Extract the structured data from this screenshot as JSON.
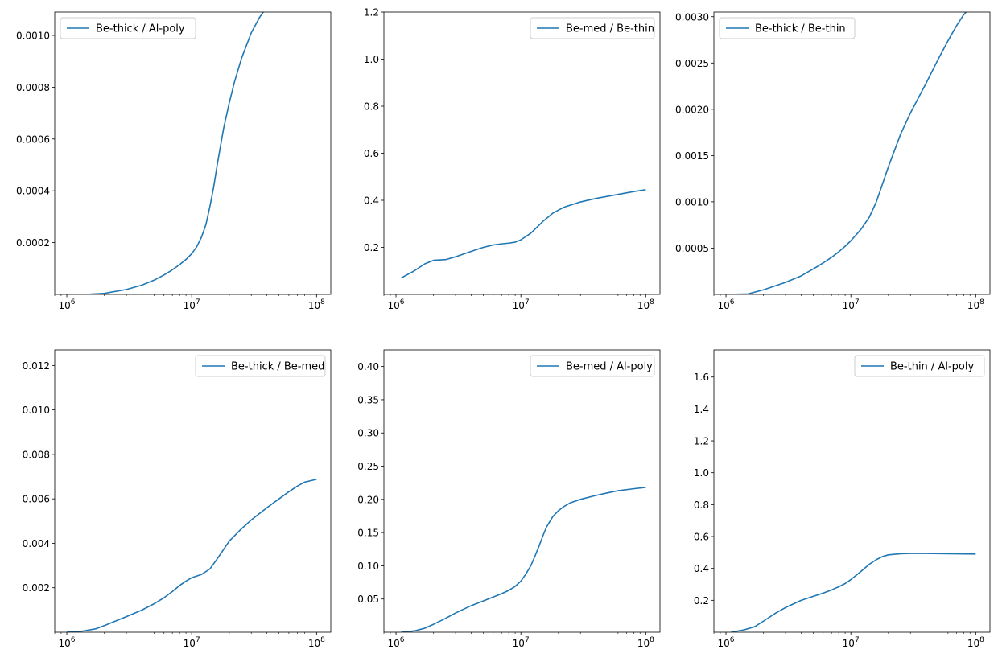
{
  "colors": {
    "line": "#1f77b4",
    "axis": "#000000",
    "legend_border": "#cccccc",
    "background": "#ffffff"
  },
  "chart_data": [
    {
      "type": "line",
      "xscale": "log",
      "xlim": [
        800000,
        130000000
      ],
      "ylim": [
        0,
        0.00109
      ],
      "xticks": [
        1000000,
        10000000,
        100000000
      ],
      "yticks": [
        0.0002,
        0.0004,
        0.0006,
        0.0008,
        0.001
      ],
      "ytick_labels": [
        "0.0002",
        "0.0004",
        "0.0006",
        "0.0008",
        "0.0010"
      ],
      "legend_position": "upper left",
      "series": [
        {
          "name": "Be-thick / Al-poly",
          "x": [
            1000000,
            1500000,
            2000000,
            3000000,
            4000000,
            5000000,
            6000000,
            7000000,
            8000000,
            9000000,
            10000000,
            11000000,
            12000000,
            13000000,
            14000000,
            15000000,
            16000000,
            18000000,
            20000000,
            22000000,
            25000000,
            30000000,
            35000000,
            40000000
          ],
          "y": [
            0.0,
            5e-07,
            4e-06,
            1.9e-05,
            3.6e-05,
            5.5e-05,
            7.5e-05,
            9.5e-05,
            0.000115,
            0.000135,
            0.000157,
            0.000185,
            0.000222,
            0.00027,
            0.00034,
            0.000415,
            0.0005,
            0.00064,
            0.00074,
            0.00082,
            0.00091,
            0.00101,
            0.00107,
            0.00111
          ]
        }
      ]
    },
    {
      "type": "line",
      "xscale": "log",
      "xlim": [
        800000,
        130000000
      ],
      "ylim": [
        0,
        1.2
      ],
      "xticks": [
        1000000,
        10000000,
        100000000
      ],
      "yticks": [
        0.2,
        0.4,
        0.6,
        0.8,
        1.0,
        1.2
      ],
      "ytick_labels": [
        "0.2",
        "0.4",
        "0.6",
        "0.8",
        "1.0",
        "1.2"
      ],
      "legend_position": "upper right",
      "series": [
        {
          "name": "Be-med / Be-thin",
          "x": [
            1100000,
            1400000,
            1700000,
            2000000,
            2500000,
            3000000,
            4000000,
            5000000,
            6000000,
            7000000,
            8000000,
            9000000,
            10000000,
            12000000,
            15000000,
            18000000,
            22000000,
            30000000,
            40000000,
            60000000,
            80000000,
            100000000
          ],
          "y": [
            0.07,
            0.1,
            0.13,
            0.145,
            0.148,
            0.16,
            0.183,
            0.2,
            0.21,
            0.215,
            0.218,
            0.222,
            0.232,
            0.26,
            0.31,
            0.345,
            0.37,
            0.393,
            0.408,
            0.425,
            0.437,
            0.445
          ]
        }
      ]
    },
    {
      "type": "line",
      "xscale": "log",
      "xlim": [
        800000,
        130000000
      ],
      "ylim": [
        0,
        0.00305
      ],
      "xticks": [
        1000000,
        10000000,
        100000000
      ],
      "yticks": [
        0.0005,
        0.001,
        0.0015,
        0.002,
        0.0025,
        0.003
      ],
      "ytick_labels": [
        "0.0005",
        "0.0010",
        "0.0015",
        "0.0020",
        "0.0025",
        "0.0030"
      ],
      "legend_position": "upper left",
      "series": [
        {
          "name": "Be-thick / Be-thin",
          "x": [
            1000000,
            1500000,
            2000000,
            3000000,
            4000000,
            5000000,
            6000000,
            7000000,
            8000000,
            9000000,
            10000000,
            12000000,
            14000000,
            16000000,
            18000000,
            20000000,
            25000000,
            30000000,
            40000000,
            50000000,
            60000000,
            70000000,
            80000000,
            100000000
          ],
          "y": [
            0.0,
            5e-06,
            5e-05,
            0.00013,
            0.0002,
            0.000275,
            0.00034,
            0.0004,
            0.00046,
            0.00052,
            0.00058,
            0.0007,
            0.00083,
            0.001,
            0.0012,
            0.00138,
            0.00173,
            0.00196,
            0.00228,
            0.00254,
            0.00274,
            0.0029,
            0.00302,
            0.00317
          ]
        }
      ]
    },
    {
      "type": "line",
      "xscale": "log",
      "xlim": [
        800000,
        130000000
      ],
      "ylim": [
        0,
        0.0127
      ],
      "xticks": [
        1000000,
        10000000,
        100000000
      ],
      "yticks": [
        0.002,
        0.004,
        0.006,
        0.008,
        0.01,
        0.012
      ],
      "ytick_labels": [
        "0.002",
        "0.004",
        "0.006",
        "0.008",
        "0.010",
        "0.012"
      ],
      "legend_position": "upper right",
      "series": [
        {
          "name": "Be-thick / Be-med",
          "x": [
            1000000,
            1300000,
            1700000,
            2000000,
            2500000,
            3000000,
            4000000,
            5000000,
            6000000,
            7000000,
            8000000,
            9000000,
            10000000,
            12000000,
            14000000,
            16000000,
            20000000,
            25000000,
            30000000,
            40000000,
            50000000,
            60000000,
            70000000,
            80000000,
            100000000
          ],
          "y": [
            0.0,
            4e-05,
            0.00015,
            0.0003,
            0.00052,
            0.0007,
            0.001,
            0.00128,
            0.00155,
            0.00183,
            0.0021,
            0.0023,
            0.00245,
            0.0026,
            0.00285,
            0.0033,
            0.0041,
            0.00465,
            0.00505,
            0.0056,
            0.006,
            0.00632,
            0.00657,
            0.00675,
            0.00688
          ]
        }
      ]
    },
    {
      "type": "line",
      "xscale": "log",
      "xlim": [
        800000,
        130000000
      ],
      "ylim": [
        0,
        0.425
      ],
      "xticks": [
        1000000,
        10000000,
        100000000
      ],
      "yticks": [
        0.05,
        0.1,
        0.15,
        0.2,
        0.25,
        0.3,
        0.35,
        0.4
      ],
      "ytick_labels": [
        "0.05",
        "0.10",
        "0.15",
        "0.20",
        "0.25",
        "0.30",
        "0.35",
        "0.40"
      ],
      "legend_position": "upper right",
      "series": [
        {
          "name": "Be-med / Al-poly",
          "x": [
            1100000,
            1400000,
            1700000,
            2000000,
            2500000,
            3000000,
            4000000,
            5000000,
            6000000,
            7000000,
            8000000,
            9000000,
            10000000,
            11000000,
            12000000,
            13000000,
            14000000,
            15000000,
            16000000,
            18000000,
            20000000,
            22000000,
            25000000,
            30000000,
            40000000,
            50000000,
            60000000,
            80000000,
            100000000
          ],
          "y": [
            0.0,
            0.002,
            0.006,
            0.012,
            0.021,
            0.029,
            0.04,
            0.047,
            0.053,
            0.058,
            0.063,
            0.069,
            0.077,
            0.088,
            0.1,
            0.115,
            0.13,
            0.145,
            0.158,
            0.174,
            0.183,
            0.189,
            0.195,
            0.2,
            0.206,
            0.21,
            0.213,
            0.216,
            0.218
          ]
        }
      ]
    },
    {
      "type": "line",
      "xscale": "log",
      "xlim": [
        800000,
        130000000
      ],
      "ylim": [
        0,
        1.77
      ],
      "xticks": [
        1000000,
        10000000,
        100000000
      ],
      "yticks": [
        0.2,
        0.4,
        0.6,
        0.8,
        1.0,
        1.2,
        1.4,
        1.6
      ],
      "ytick_labels": [
        "0.2",
        "0.4",
        "0.6",
        "0.8",
        "1.0",
        "1.2",
        "1.4",
        "1.6"
      ],
      "legend_position": "upper right",
      "series": [
        {
          "name": "Be-thin / Al-poly",
          "x": [
            1100000,
            1400000,
            1700000,
            2000000,
            2500000,
            3000000,
            4000000,
            5000000,
            6000000,
            7000000,
            8000000,
            9000000,
            10000000,
            12000000,
            14000000,
            16000000,
            18000000,
            20000000,
            25000000,
            30000000,
            40000000,
            60000000,
            100000000
          ],
          "y": [
            0.0,
            0.015,
            0.035,
            0.07,
            0.12,
            0.155,
            0.2,
            0.225,
            0.245,
            0.265,
            0.285,
            0.305,
            0.33,
            0.38,
            0.425,
            0.455,
            0.475,
            0.485,
            0.492,
            0.494,
            0.494,
            0.492,
            0.49
          ]
        }
      ]
    }
  ]
}
